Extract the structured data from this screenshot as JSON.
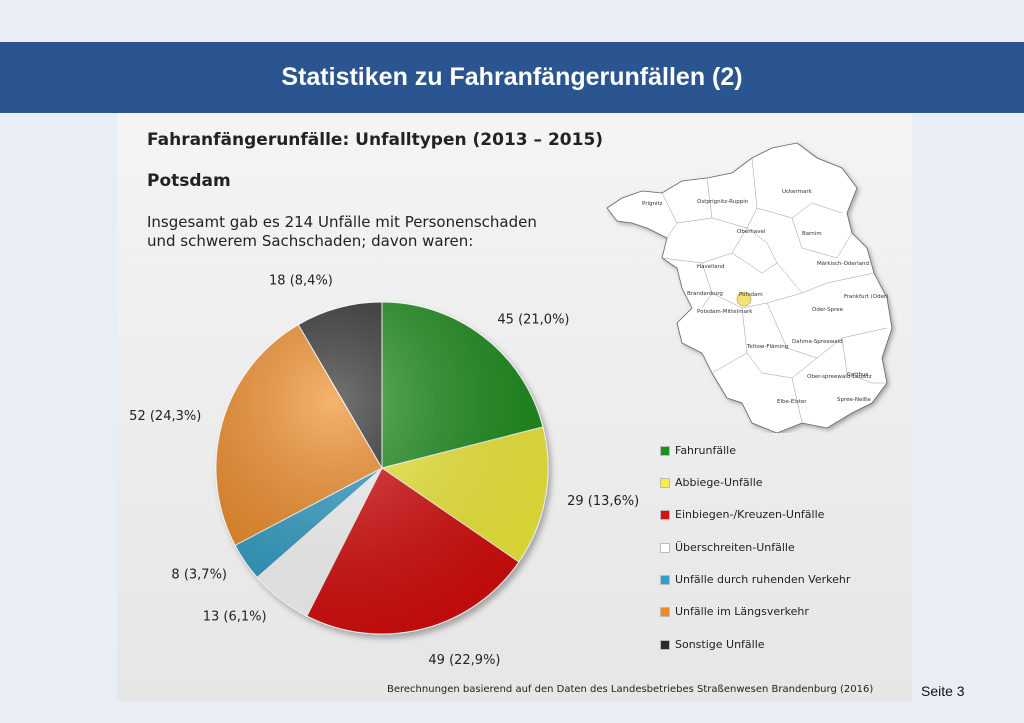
{
  "header": {
    "title": "Statistiken zu Fahranfängerunfällen (2)"
  },
  "slide": {
    "title": "Fahranfängerunfälle: Unfalltypen (2013 – 2015)",
    "subtitle": "Potsdam",
    "description": "Insgesamt gab es 214 Unfälle mit Personenschaden und schwerem Sachschaden; davon waren:",
    "source": "Berechnungen basierend auf den Daten des Landesbetriebes Straßenwesen Brandenburg (2016)"
  },
  "page_number": "Seite 3",
  "chart_data": {
    "type": "pie",
    "total": 214,
    "categories": [
      "Fahrunfälle",
      "Abbiege-Unfälle",
      "Einbiegen-/Kreuzen-Unfälle",
      "Überschreiten-Unfälle",
      "Unfälle durch ruhenden Verkehr",
      "Unfälle im Längsverkehr",
      "Sonstige Unfälle"
    ],
    "values": [
      45,
      29,
      49,
      13,
      8,
      52,
      18
    ],
    "labels": [
      "45 (21,0%)",
      "29 (13,6%)",
      "49 (22,9%)",
      "13 (6,1%)",
      "8 (3,7%)",
      "52  (24,3%)",
      "18 (8,4%)"
    ],
    "colors": [
      "#1a8f1a",
      "#f5f03a",
      "#d90d0d",
      "#ffffff",
      "#2e9fc6",
      "#f08a24",
      "#2b2b2b"
    ],
    "legend_position": "bottom-right"
  },
  "map": {
    "region_labels": [
      "Prignitz",
      "Ostprignitz-Ruppin",
      "Uckermark",
      "Oberhavel",
      "Barnim",
      "Havelland",
      "Märkisch-Oderland",
      "Brandenburg",
      "Potsdam",
      "Frankfurt (Oder)",
      "Potsdam-Mittelmark",
      "Oder-Spree",
      "Teltow-Fläming",
      "Dahme-Spreewald",
      "Ober-spreewald-Lausitz",
      "Cottbus",
      "Elbe-Elster",
      "Spree-Neiße"
    ],
    "highlight": "Potsdam",
    "highlight_color": "#f2e27a"
  }
}
